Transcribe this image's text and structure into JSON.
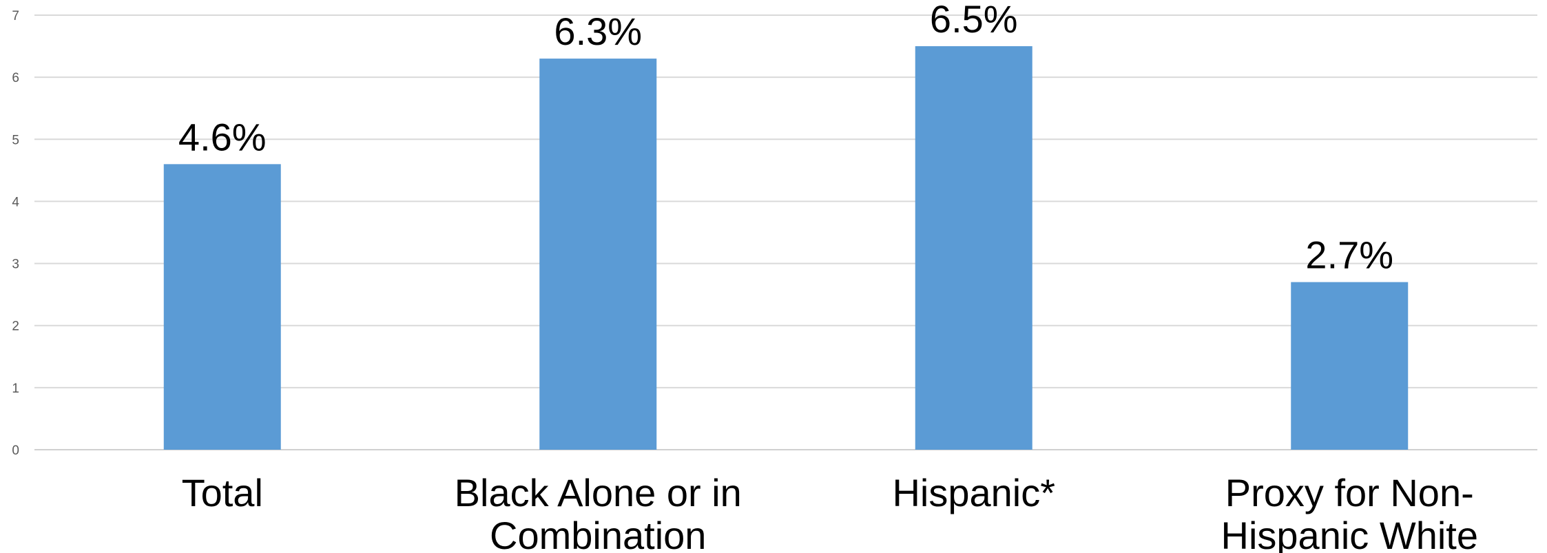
{
  "chart_data": {
    "type": "bar",
    "categories": [
      "Total",
      "Black Alone or in Combination",
      "Hispanic*",
      "Proxy for Non-Hispanic White"
    ],
    "category_label_lines": [
      [
        "Total"
      ],
      [
        "Black Alone or in",
        "Combination"
      ],
      [
        "Hispanic*"
      ],
      [
        "Proxy for Non-",
        "Hispanic White"
      ]
    ],
    "values": [
      4.6,
      6.3,
      6.5,
      2.7
    ],
    "data_labels": [
      "4.6%",
      "6.3%",
      "6.5%",
      "2.7%"
    ],
    "y_ticks": [
      "0",
      "1",
      "2",
      "3",
      "4",
      "5",
      "6",
      "7"
    ],
    "ylim": [
      0,
      7
    ],
    "grid": true,
    "legend": "none",
    "bar_color": "#5b9bd5"
  }
}
